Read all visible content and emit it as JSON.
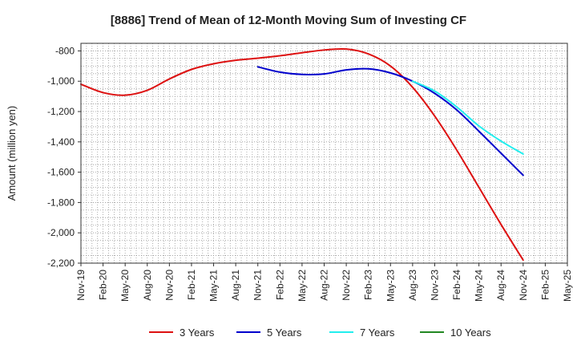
{
  "chart_data": {
    "type": "line",
    "title": "[8886]  Trend of Mean of 12-Month Moving Sum of Investing CF",
    "xlabel": "",
    "ylabel": "Amount (million yen)",
    "ylim": [
      -2200,
      -750
    ],
    "yticks": [
      -800,
      -1000,
      -1200,
      -1400,
      -1600,
      -1800,
      -2000,
      -2200
    ],
    "ytick_labels": [
      "-800",
      "-1,000",
      "-1,200",
      "-1,400",
      "-1,600",
      "-1,800",
      "-2,000",
      "-2,200"
    ],
    "categories": [
      "Nov-19",
      "Feb-20",
      "May-20",
      "Aug-20",
      "Nov-20",
      "Feb-21",
      "May-21",
      "Aug-21",
      "Nov-21",
      "Feb-22",
      "May-22",
      "Aug-22",
      "Nov-22",
      "Feb-23",
      "May-23",
      "Aug-23",
      "Nov-23",
      "Feb-24",
      "May-24",
      "Aug-24",
      "Nov-24",
      "Feb-25",
      "May-25"
    ],
    "grid": true,
    "legend_position": "bottom",
    "series": [
      {
        "name": "3 Years",
        "color": "#dd1111",
        "values": [
          -1020,
          -1075,
          -1092,
          -1060,
          -985,
          -922,
          -885,
          -862,
          -848,
          -832,
          -812,
          -794,
          -788,
          -820,
          -900,
          -1040,
          -1230,
          -1455,
          -1700,
          -1945,
          -2180,
          null,
          null
        ]
      },
      {
        "name": "5 Years",
        "color": "#0000cc",
        "values": [
          null,
          null,
          null,
          null,
          null,
          null,
          null,
          null,
          -905,
          -940,
          -955,
          -952,
          -925,
          -918,
          -945,
          -1000,
          -1080,
          -1190,
          -1330,
          -1475,
          -1620,
          null,
          null
        ]
      },
      {
        "name": "7 Years",
        "color": "#22eeee",
        "values": [
          null,
          null,
          null,
          null,
          null,
          null,
          null,
          null,
          null,
          null,
          null,
          null,
          null,
          null,
          null,
          -1000,
          -1065,
          -1170,
          -1295,
          -1395,
          -1480,
          null,
          null
        ]
      },
      {
        "name": "10 Years",
        "color": "#228822",
        "values": [
          null,
          null,
          null,
          null,
          null,
          null,
          null,
          null,
          null,
          null,
          null,
          null,
          null,
          null,
          null,
          null,
          null,
          null,
          null,
          null,
          null,
          null,
          null
        ]
      }
    ]
  }
}
